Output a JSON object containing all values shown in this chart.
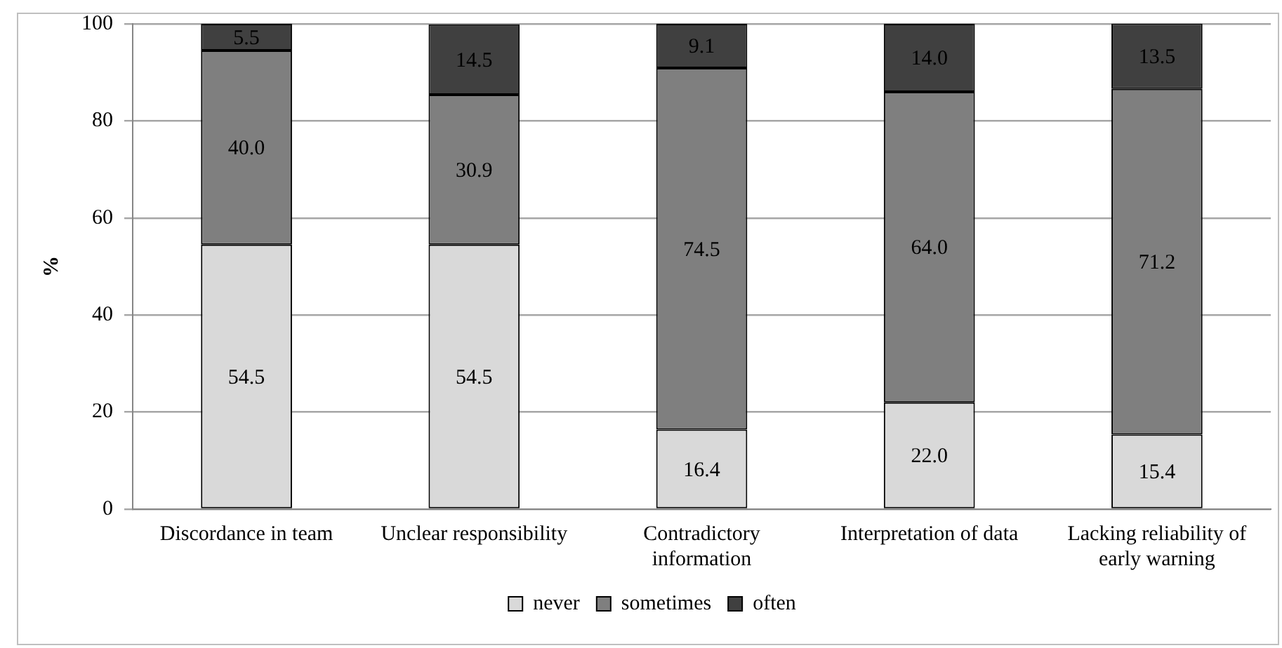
{
  "chart_data": {
    "type": "bar",
    "stacked": true,
    "ylabel": "%",
    "categories": [
      "Discordance in team",
      "Unclear responsibility",
      "Contradictory information",
      "Interpretation of data",
      "Lacking reliability of early warning"
    ],
    "series": [
      {
        "name": "never",
        "color": "#d9d9d9",
        "values": [
          54.5,
          54.5,
          16.4,
          22.0,
          15.4
        ]
      },
      {
        "name": "sometimes",
        "color": "#7f7f7f",
        "values": [
          40.0,
          30.9,
          74.5,
          64.0,
          71.2
        ]
      },
      {
        "name": "often",
        "color": "#404040",
        "values": [
          5.5,
          14.5,
          9.1,
          14.0,
          13.5
        ]
      }
    ],
    "value_labels": [
      [
        "54.5",
        "54.5",
        "16.4",
        "22.0",
        "15.4"
      ],
      [
        "40.0",
        "30.9",
        "74.5",
        "64.0",
        "71.2"
      ],
      [
        "5.5",
        "14.5",
        "9.1",
        "14.0",
        "13.5"
      ]
    ],
    "ylim": [
      0,
      100
    ],
    "yticks": [
      0,
      20,
      40,
      60,
      80,
      100
    ],
    "grid": "y",
    "legend": "bottom"
  }
}
